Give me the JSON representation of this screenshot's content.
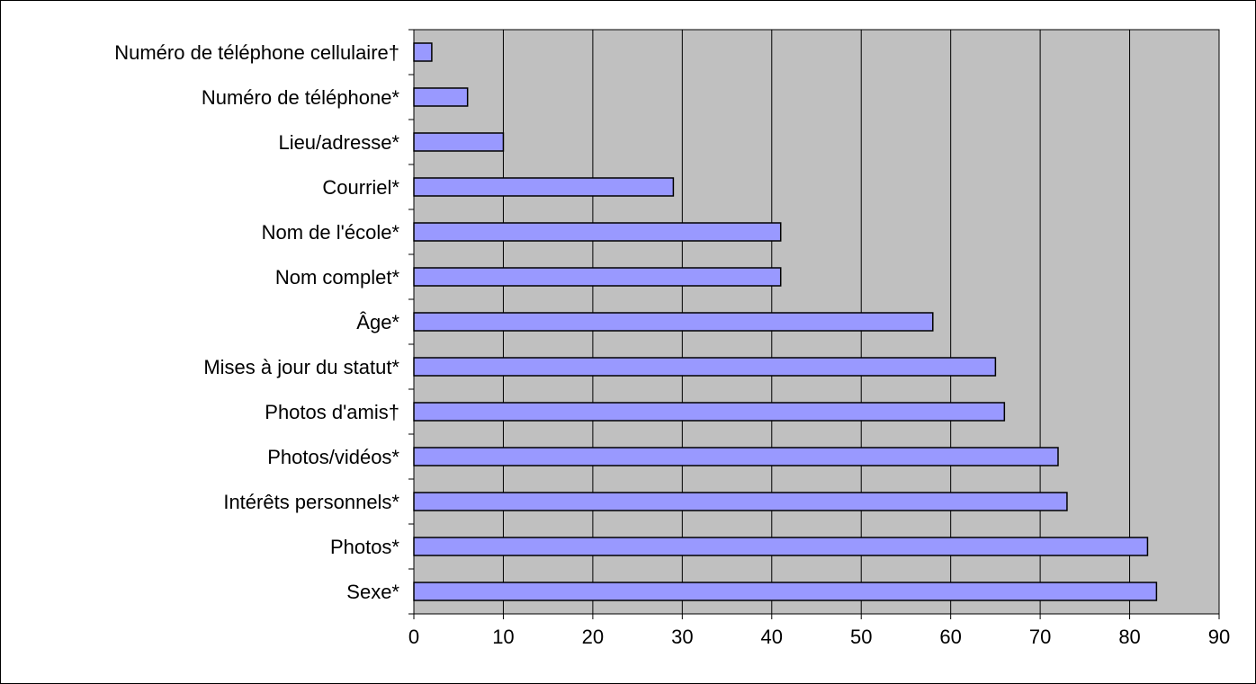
{
  "chart_data": {
    "type": "bar",
    "orientation": "horizontal",
    "title": "",
    "xlabel": "",
    "ylabel": "",
    "categories": [
      "Numéro de téléphone cellulaire†",
      "Numéro de téléphone*",
      "Lieu/adresse*",
      "Courriel*",
      "Nom de l'école*",
      "Nom complet*",
      "Âge*",
      "Mises à jour du statut*",
      "Photos d'amis†",
      "Photos/vidéos*",
      "Intérêts personnels*",
      "Photos*",
      "Sexe*"
    ],
    "values": [
      2,
      6,
      10,
      29,
      41,
      41,
      58,
      65,
      66,
      72,
      73,
      82,
      83
    ],
    "xlim": [
      0,
      90
    ],
    "xticks": [
      "0",
      "10",
      "20",
      "30",
      "40",
      "50",
      "60",
      "70",
      "80",
      "90"
    ],
    "grid": "vertical",
    "legend": "none",
    "colors": {
      "bar_fill": "#9999ff",
      "bar_stroke": "#000000",
      "plot_background": "#c0c0c0",
      "gridline": "#000000"
    }
  }
}
